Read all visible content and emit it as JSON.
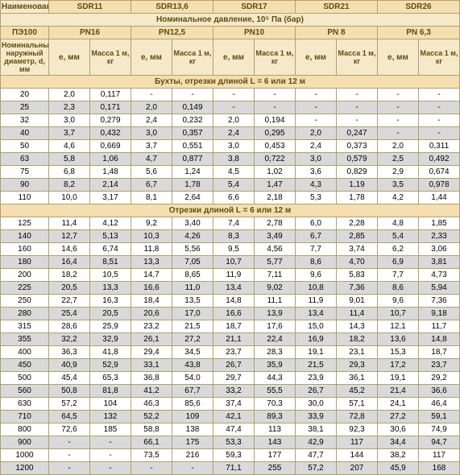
{
  "headers": {
    "material": "Наименование полиэтилена",
    "sdr": [
      "SDR11",
      "SDR13,6",
      "SDR17",
      "SDR21",
      "SDR26"
    ],
    "nominal_pressure": "Номинальное давление, 10⁵ Па (бар)",
    "pe": "ПЭ100",
    "pn": [
      "PN16",
      "PN12,5",
      "PN10",
      "PN 8",
      "PN 6,3"
    ],
    "diam": "Номинальный наружный диаметр, d, мм",
    "e": "e, мм",
    "mass": "Масса 1 м, кг"
  },
  "section1_title": "Бухты, отрезки длиной L = 6 или 12 м",
  "section2_title": "Отрезки длиной L = 6 или 12 м",
  "section1": [
    {
      "d": "20",
      "v": [
        "2,0",
        "0,117",
        "-",
        "-",
        "-",
        "-",
        "-",
        "-",
        "-",
        "-"
      ]
    },
    {
      "d": "25",
      "v": [
        "2,3",
        "0,171",
        "2,0",
        "0,149",
        "-",
        "-",
        "-",
        "-",
        "-",
        "-"
      ]
    },
    {
      "d": "32",
      "v": [
        "3,0",
        "0,279",
        "2,4",
        "0,232",
        "2,0",
        "0,194",
        "-",
        "-",
        "-",
        "-"
      ]
    },
    {
      "d": "40",
      "v": [
        "3,7",
        "0,432",
        "3,0",
        "0,357",
        "2,4",
        "0,295",
        "2,0",
        "0,247",
        "-",
        "-"
      ]
    },
    {
      "d": "50",
      "v": [
        "4,6",
        "0,669",
        "3,7",
        "0,551",
        "3,0",
        "0,453",
        "2,4",
        "0,373",
        "2,0",
        "0,311"
      ]
    },
    {
      "d": "63",
      "v": [
        "5,8",
        "1,06",
        "4,7",
        "0,877",
        "3,8",
        "0,722",
        "3,0",
        "0,579",
        "2,5",
        "0,492"
      ]
    },
    {
      "d": "75",
      "v": [
        "6,8",
        "1,48",
        "5,6",
        "1,24",
        "4,5",
        "1,02",
        "3,6",
        "0,829",
        "2,9",
        "0,674"
      ]
    },
    {
      "d": "90",
      "v": [
        "8,2",
        "2,14",
        "6,7",
        "1,78",
        "5,4",
        "1,47",
        "4,3",
        "1,19",
        "3,5",
        "0,978"
      ]
    },
    {
      "d": "110",
      "v": [
        "10,0",
        "3,17",
        "8,1",
        "2,64",
        "6,6",
        "2,18",
        "5,3",
        "1,78",
        "4,2",
        "1,44"
      ]
    }
  ],
  "section2": [
    {
      "d": "125",
      "v": [
        "11,4",
        "4,12",
        "9,2",
        "3,40",
        "7,4",
        "2,78",
        "6,0",
        "2,28",
        "4,8",
        "1,85"
      ]
    },
    {
      "d": "140",
      "v": [
        "12,7",
        "5,13",
        "10,3",
        "4,26",
        "8,3",
        "3,49",
        "6,7",
        "2,85",
        "5,4",
        "2,33"
      ]
    },
    {
      "d": "160",
      "v": [
        "14,6",
        "6,74",
        "11,8",
        "5,56",
        "9,5",
        "4,56",
        "7,7",
        "3,74",
        "6,2",
        "3,06"
      ]
    },
    {
      "d": "180",
      "v": [
        "16,4",
        "8,51",
        "13,3",
        "7,05",
        "10,7",
        "5,77",
        "8,6",
        "4,70",
        "6,9",
        "3,81"
      ]
    },
    {
      "d": "200",
      "v": [
        "18,2",
        "10,5",
        "14,7",
        "8,65",
        "11,9",
        "7,11",
        "9,6",
        "5,83",
        "7,7",
        "4,73"
      ]
    },
    {
      "d": "225",
      "v": [
        "20,5",
        "13,3",
        "16,6",
        "11,0",
        "13,4",
        "9,02",
        "10,8",
        "7,36",
        "8,6",
        "5,94"
      ]
    },
    {
      "d": "250",
      "v": [
        "22,7",
        "16,3",
        "18,4",
        "13,5",
        "14,8",
        "11,1",
        "11,9",
        "9,01",
        "9,6",
        "7,36"
      ]
    },
    {
      "d": "280",
      "v": [
        "25,4",
        "20,5",
        "20,6",
        "17,0",
        "16,6",
        "13,9",
        "13,4",
        "11,4",
        "10,7",
        "9,18"
      ]
    },
    {
      "d": "315",
      "v": [
        "28,6",
        "25,9",
        "23,2",
        "21,5",
        "18,7",
        "17,6",
        "15,0",
        "14,3",
        "12,1",
        "11,7"
      ]
    },
    {
      "d": "355",
      "v": [
        "32,2",
        "32,9",
        "26,1",
        "27,2",
        "21,1",
        "22,4",
        "16,9",
        "18,2",
        "13,6",
        "14,8"
      ]
    },
    {
      "d": "400",
      "v": [
        "36,3",
        "41,8",
        "29,4",
        "34,5",
        "23,7",
        "28,3",
        "19,1",
        "23,1",
        "15,3",
        "18,7"
      ]
    },
    {
      "d": "450",
      "v": [
        "40,9",
        "52,9",
        "33,1",
        "43,8",
        "26,7",
        "35,9",
        "21,5",
        "29,3",
        "17,2",
        "23,7"
      ]
    },
    {
      "d": "500",
      "v": [
        "45,4",
        "65,3",
        "36,8",
        "54,0",
        "29,7",
        "44,3",
        "23,9",
        "36,1",
        "19,1",
        "29,2"
      ]
    },
    {
      "d": "560",
      "v": [
        "50,8",
        "81,8",
        "41,2",
        "67,7",
        "33,2",
        "55,5",
        "26,7",
        "45,2",
        "21,4",
        "36,6"
      ]
    },
    {
      "d": "630",
      "v": [
        "57,2",
        "104",
        "46,3",
        "85,6",
        "37,4",
        "70,3",
        "30,0",
        "57,1",
        "24,1",
        "46,4"
      ]
    },
    {
      "d": "710",
      "v": [
        "64,5",
        "132",
        "52,2",
        "109",
        "42,1",
        "89,3",
        "33,9",
        "72,8",
        "27,2",
        "59,1"
      ]
    },
    {
      "d": "800",
      "v": [
        "72,6",
        "185",
        "58,8",
        "138",
        "47,4",
        "113",
        "38,1",
        "92,3",
        "30,6",
        "74,9"
      ]
    },
    {
      "d": "900",
      "v": [
        "-",
        "-",
        "66,1",
        "175",
        "53,3",
        "143",
        "42,9",
        "117",
        "34,4",
        "94,7"
      ]
    },
    {
      "d": "1000",
      "v": [
        "-",
        "-",
        "73,5",
        "216",
        "59,3",
        "177",
        "47,7",
        "144",
        "38,2",
        "117"
      ]
    },
    {
      "d": "1200",
      "v": [
        "-",
        "-",
        "-",
        "-",
        "71,1",
        "255",
        "57,2",
        "207",
        "45,9",
        "168"
      ]
    }
  ],
  "style": {
    "header_bg_yellow": "#f5deb0",
    "header_bg_beige": "#f5e9c9",
    "row_odd_bg": "#d9d9d9",
    "row_even_bg": "#ffffff",
    "border_color": "#b0a070",
    "font_size_body": 10,
    "font_size_header": 10
  }
}
